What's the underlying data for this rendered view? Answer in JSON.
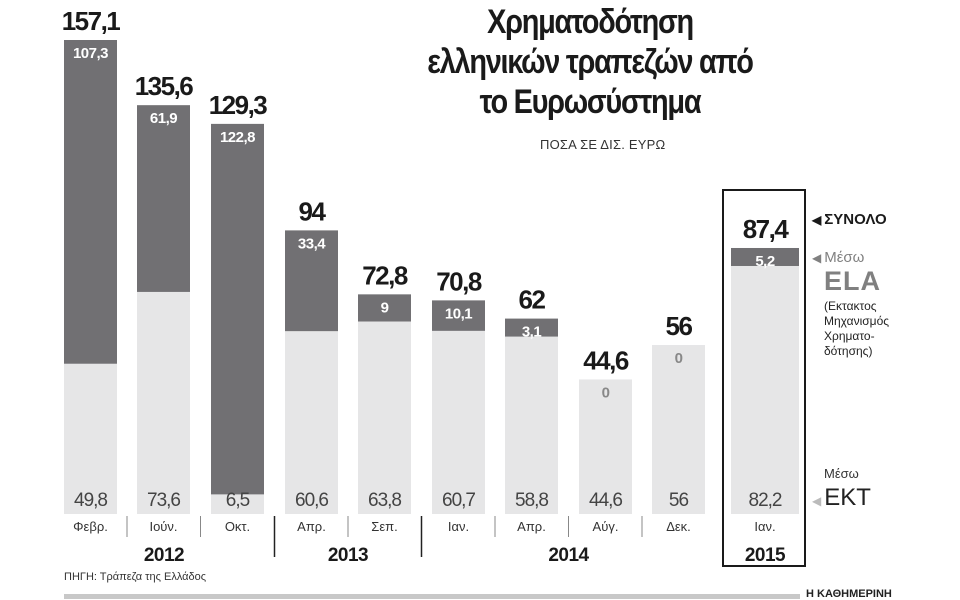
{
  "chart_data": {
    "type": "bar",
    "stacked": true,
    "title": "Χρηματοδότηση ελληνικών τραπεζών από το Ευρωσύστημα",
    "subtitle": "ΠΟΣΑ ΣΕ ΔΙΣ. ΕΥΡΩ",
    "categories": [
      "Φεβρ.",
      "Ιούν.",
      "Οκτ.",
      "Απρ.",
      "Σεπ.",
      "Ιαν.",
      "Απρ.",
      "Αύγ.",
      "Δεκ.",
      "Ιαν."
    ],
    "years": [
      {
        "label": "2012",
        "span": [
          0,
          2
        ]
      },
      {
        "label": "2013",
        "span": [
          3,
          4
        ]
      },
      {
        "label": "2014",
        "span": [
          5,
          8
        ]
      },
      {
        "label": "2015",
        "span": [
          9,
          9
        ]
      }
    ],
    "totals": [
      "157,1",
      "135,6",
      "129,3",
      "94",
      "72,8",
      "70,8",
      "62",
      "44,6",
      "56",
      "87,4"
    ],
    "series": [
      {
        "name": "ΕΚΤ",
        "values": [
          49.8,
          73.6,
          6.5,
          60.6,
          63.8,
          60.7,
          58.8,
          44.6,
          56,
          82.2
        ],
        "labels": [
          "49,8",
          "73,6",
          "6,5",
          "60,6",
          "63,8",
          "60,7",
          "58,8",
          "44,6",
          "56",
          "82,2"
        ],
        "color": "#e6e6e7"
      },
      {
        "name": "ELA",
        "values": [
          107.3,
          61.9,
          122.8,
          33.4,
          9,
          10.1,
          3.1,
          0,
          0,
          5.2
        ],
        "labels": [
          "107,3",
          "61,9",
          "122,8",
          "33,4",
          "9",
          "10,1",
          "3,1",
          "0",
          "0",
          "5,2"
        ],
        "color": "#717073"
      }
    ],
    "ylim": [
      0,
      160
    ],
    "highlight_category": "Ιαν. 2015"
  },
  "legend": {
    "total": "ΣΥΝΟΛΟ",
    "ela_via": "Μέσω",
    "ela": "ELA",
    "ela_note": "(Εκτακτος Μηχανισμός Χρηματο-δότησης)",
    "ecb_via": "Μέσω",
    "ecb": "ΕΚΤ"
  },
  "source": "ΠΗΓΗ: Τράπεζα της Ελλάδος",
  "brand": "Η ΚΑΘΗΜΕΡΙΝΗ"
}
